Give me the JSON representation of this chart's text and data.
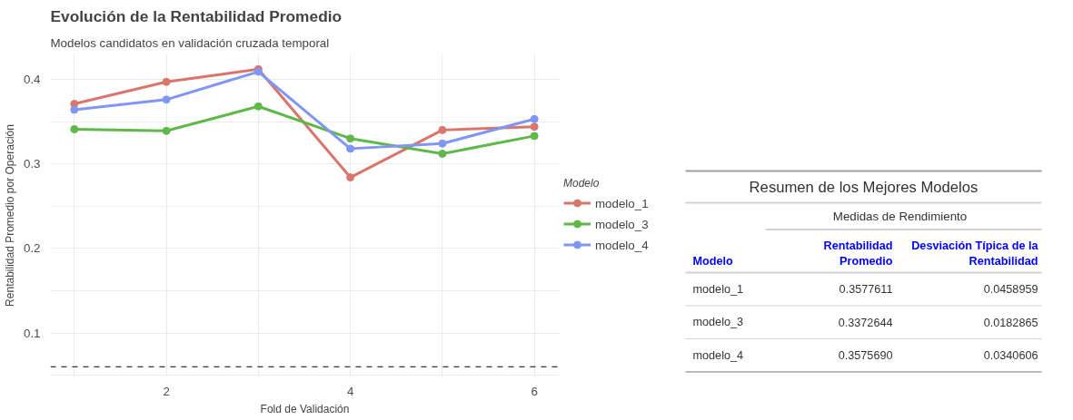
{
  "chart_data": [
    {
      "type": "line",
      "title": "Evolución de la Rentabilidad Promedio",
      "subtitle": "Modelos candidatos en validación cruzada temporal",
      "xlabel": "Fold de Validación",
      "ylabel": "Rentabilidad Promedio por Operación",
      "legend_title": "Modelo",
      "x": [
        1,
        2,
        3,
        4,
        5,
        6
      ],
      "series": [
        {
          "name": "modelo_1",
          "color": "#d9756c",
          "values": [
            0.371,
            0.397,
            0.412,
            0.284,
            0.34,
            0.344
          ]
        },
        {
          "name": "modelo_3",
          "color": "#61b84a",
          "values": [
            0.341,
            0.339,
            0.368,
            0.33,
            0.312,
            0.333
          ]
        },
        {
          "name": "modelo_4",
          "color": "#7f96f4",
          "values": [
            0.364,
            0.376,
            0.409,
            0.318,
            0.324,
            0.353
          ]
        }
      ],
      "xlim": [
        0.74,
        6.27
      ],
      "ylim": [
        0.048,
        0.43
      ],
      "xticks": [
        {
          "value": 1,
          "label": null
        },
        2,
        {
          "value": 3,
          "label": null
        },
        4,
        {
          "value": 5,
          "label": null
        },
        6
      ],
      "yticks": [
        {
          "value": 0.05,
          "label": null
        },
        0.1,
        {
          "value": 0.15,
          "label": null
        },
        0.2,
        {
          "value": 0.25,
          "label": null
        },
        0.3,
        {
          "value": 0.35,
          "label": null
        },
        0.4
      ],
      "ref_lines": [
        {
          "axis": "y",
          "value": 0.06,
          "color": "#333333",
          "line_style": "dashed"
        }
      ],
      "grid": true,
      "legend": "right",
      "marker": "circle",
      "line_style": "solid"
    },
    {
      "type": "other",
      "title": "Resumen de los Mejores Modelos",
      "subtitle": "Medidas de Rendimiento",
      "annotations": [
        "Modelo",
        "Rentabilidad Promedio",
        "Desviación Típica de la Rentabilidad",
        "modelo_1",
        "0.3577611",
        "0.0458959",
        "modelo_3",
        "0.3372644",
        "0.0182865",
        "modelo_4",
        "0.3575690",
        "0.0340606"
      ]
    }
  ]
}
